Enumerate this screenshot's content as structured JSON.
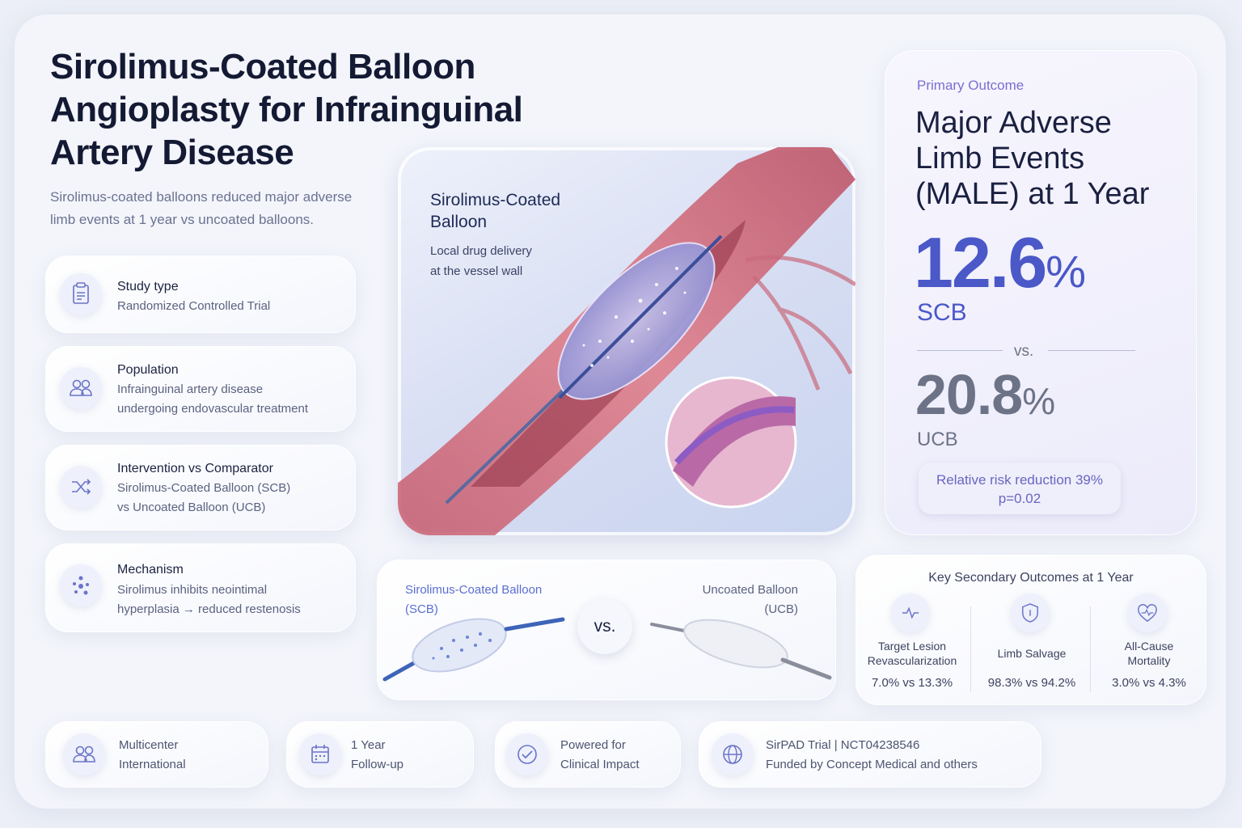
{
  "header": {
    "title": [
      "Sirolimus-Coated Balloon",
      "Angioplasty for Infrainguinal",
      "Artery Disease"
    ],
    "subtitle": [
      "Sirolimus-coated balloons reduced major adverse",
      "limb events at 1 year vs uncoated balloons."
    ]
  },
  "facts": [
    {
      "label": "Study type",
      "text": [
        "Randomized Controlled Trial"
      ]
    },
    {
      "label": "Population",
      "text": [
        "Infrainguinal artery disease",
        "undergoing endovascular treatment"
      ]
    },
    {
      "label": "Intervention vs Comparator",
      "text": [
        "Sirolimus-Coated Balloon (SCB)",
        "vs Uncoated Balloon (UCB)"
      ]
    },
    {
      "label": "Mechanism",
      "text": [
        "Sirolimus inhibits neointimal",
        "hyperplasia → reduced restenosis"
      ]
    }
  ],
  "illustration": {
    "title": [
      "Sirolimus-Coated",
      "Balloon"
    ],
    "caption": [
      "Local drug delivery",
      "at the vessel wall"
    ]
  },
  "primary": {
    "eyebrow": "Primary Outcome",
    "heading": [
      "Major Adverse",
      "Limb Events",
      "(MALE) at 1 Year"
    ],
    "scb": {
      "value": "12.6",
      "unit": "%",
      "label": "SCB"
    },
    "vs": "vs.",
    "ucb": {
      "value": "20.8",
      "unit": "%",
      "label": "UCB"
    },
    "rrr": [
      "Relative risk reduction 39%",
      "p=0.02"
    ]
  },
  "comparison": {
    "left": [
      "Sirolimus-Coated Balloon",
      "(SCB)"
    ],
    "vs": "vs.",
    "right": [
      "Uncoated Balloon",
      "(UCB)"
    ]
  },
  "secondary": {
    "title": "Key Secondary Outcomes at 1 Year",
    "items": [
      {
        "label": [
          "Target Lesion",
          "Revascularization"
        ],
        "result": "7.0% vs 13.3%"
      },
      {
        "label": [
          "Limb Salvage"
        ],
        "result": "98.3% vs 94.2%"
      },
      {
        "label": [
          "All-Cause",
          "Mortality"
        ],
        "result": "3.0% vs 4.3%"
      }
    ]
  },
  "footer": [
    [
      "Multicenter",
      "International"
    ],
    [
      "1 Year",
      "Follow-up"
    ],
    [
      "Powered for",
      "Clinical Impact"
    ],
    [
      "SirPAD Trial  |  NCT04238546",
      "Funded by Concept Medical and others"
    ]
  ]
}
